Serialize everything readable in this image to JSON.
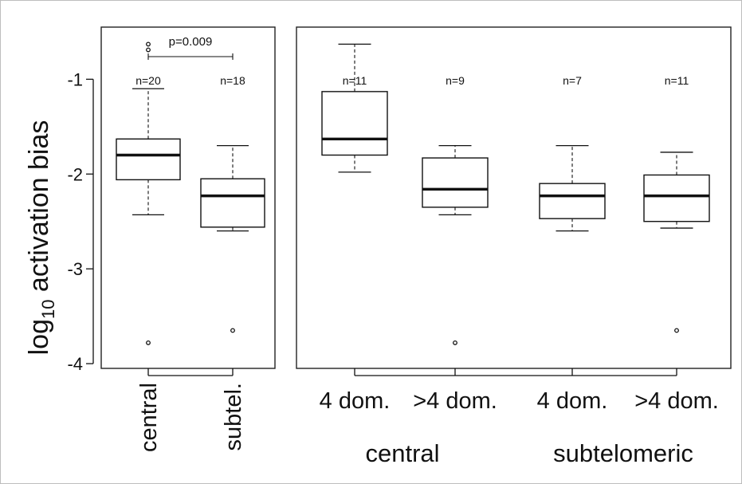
{
  "chart_data": {
    "type": "boxplot",
    "ylabel_main": "log",
    "ylabel_sub": "10",
    "ylabel_rest": " activation bias",
    "ylim": [
      -4.05,
      -0.45
    ],
    "y_ticks": [
      -1,
      -2,
      -3,
      -4
    ],
    "y_tick_labels": [
      "-1",
      "-2",
      "-3",
      "-4"
    ],
    "panels": [
      {
        "significance": {
          "label": "p=0.009",
          "between": [
            0,
            1
          ]
        },
        "boxes": [
          {
            "label": "central",
            "n_label": "n=20",
            "q1": -2.06,
            "median": -1.8,
            "q3": -1.63,
            "whisker_low": -2.43,
            "whisker_high": -1.1,
            "outliers": [
              -0.63,
              -0.69,
              -3.78
            ]
          },
          {
            "label": "subtel.",
            "n_label": "n=18",
            "q1": -2.56,
            "median": -2.23,
            "q3": -2.05,
            "whisker_low": -2.6,
            "whisker_high": -1.7,
            "outliers": [
              -3.65
            ]
          }
        ]
      },
      {
        "group_labels": [
          "central",
          "subtelomeric"
        ],
        "boxes": [
          {
            "label": "4 dom.",
            "n_label": "n=11",
            "q1": -1.8,
            "median": -1.63,
            "q3": -1.13,
            "whisker_low": -1.98,
            "whisker_high": -0.63,
            "outliers": []
          },
          {
            "label": ">4 dom.",
            "n_label": "n=9",
            "q1": -2.35,
            "median": -2.16,
            "q3": -1.83,
            "whisker_low": -2.43,
            "whisker_high": -1.7,
            "outliers": [
              -3.78
            ]
          },
          {
            "label": "4 dom.",
            "n_label": "n=7",
            "q1": -2.47,
            "median": -2.23,
            "q3": -2.1,
            "whisker_low": -2.6,
            "whisker_high": -1.7,
            "outliers": []
          },
          {
            "label": ">4 dom.",
            "n_label": "n=11",
            "q1": -2.5,
            "median": -2.23,
            "q3": -2.01,
            "whisker_low": -2.57,
            "whisker_high": -1.77,
            "outliers": [
              -3.65
            ]
          }
        ]
      }
    ]
  }
}
